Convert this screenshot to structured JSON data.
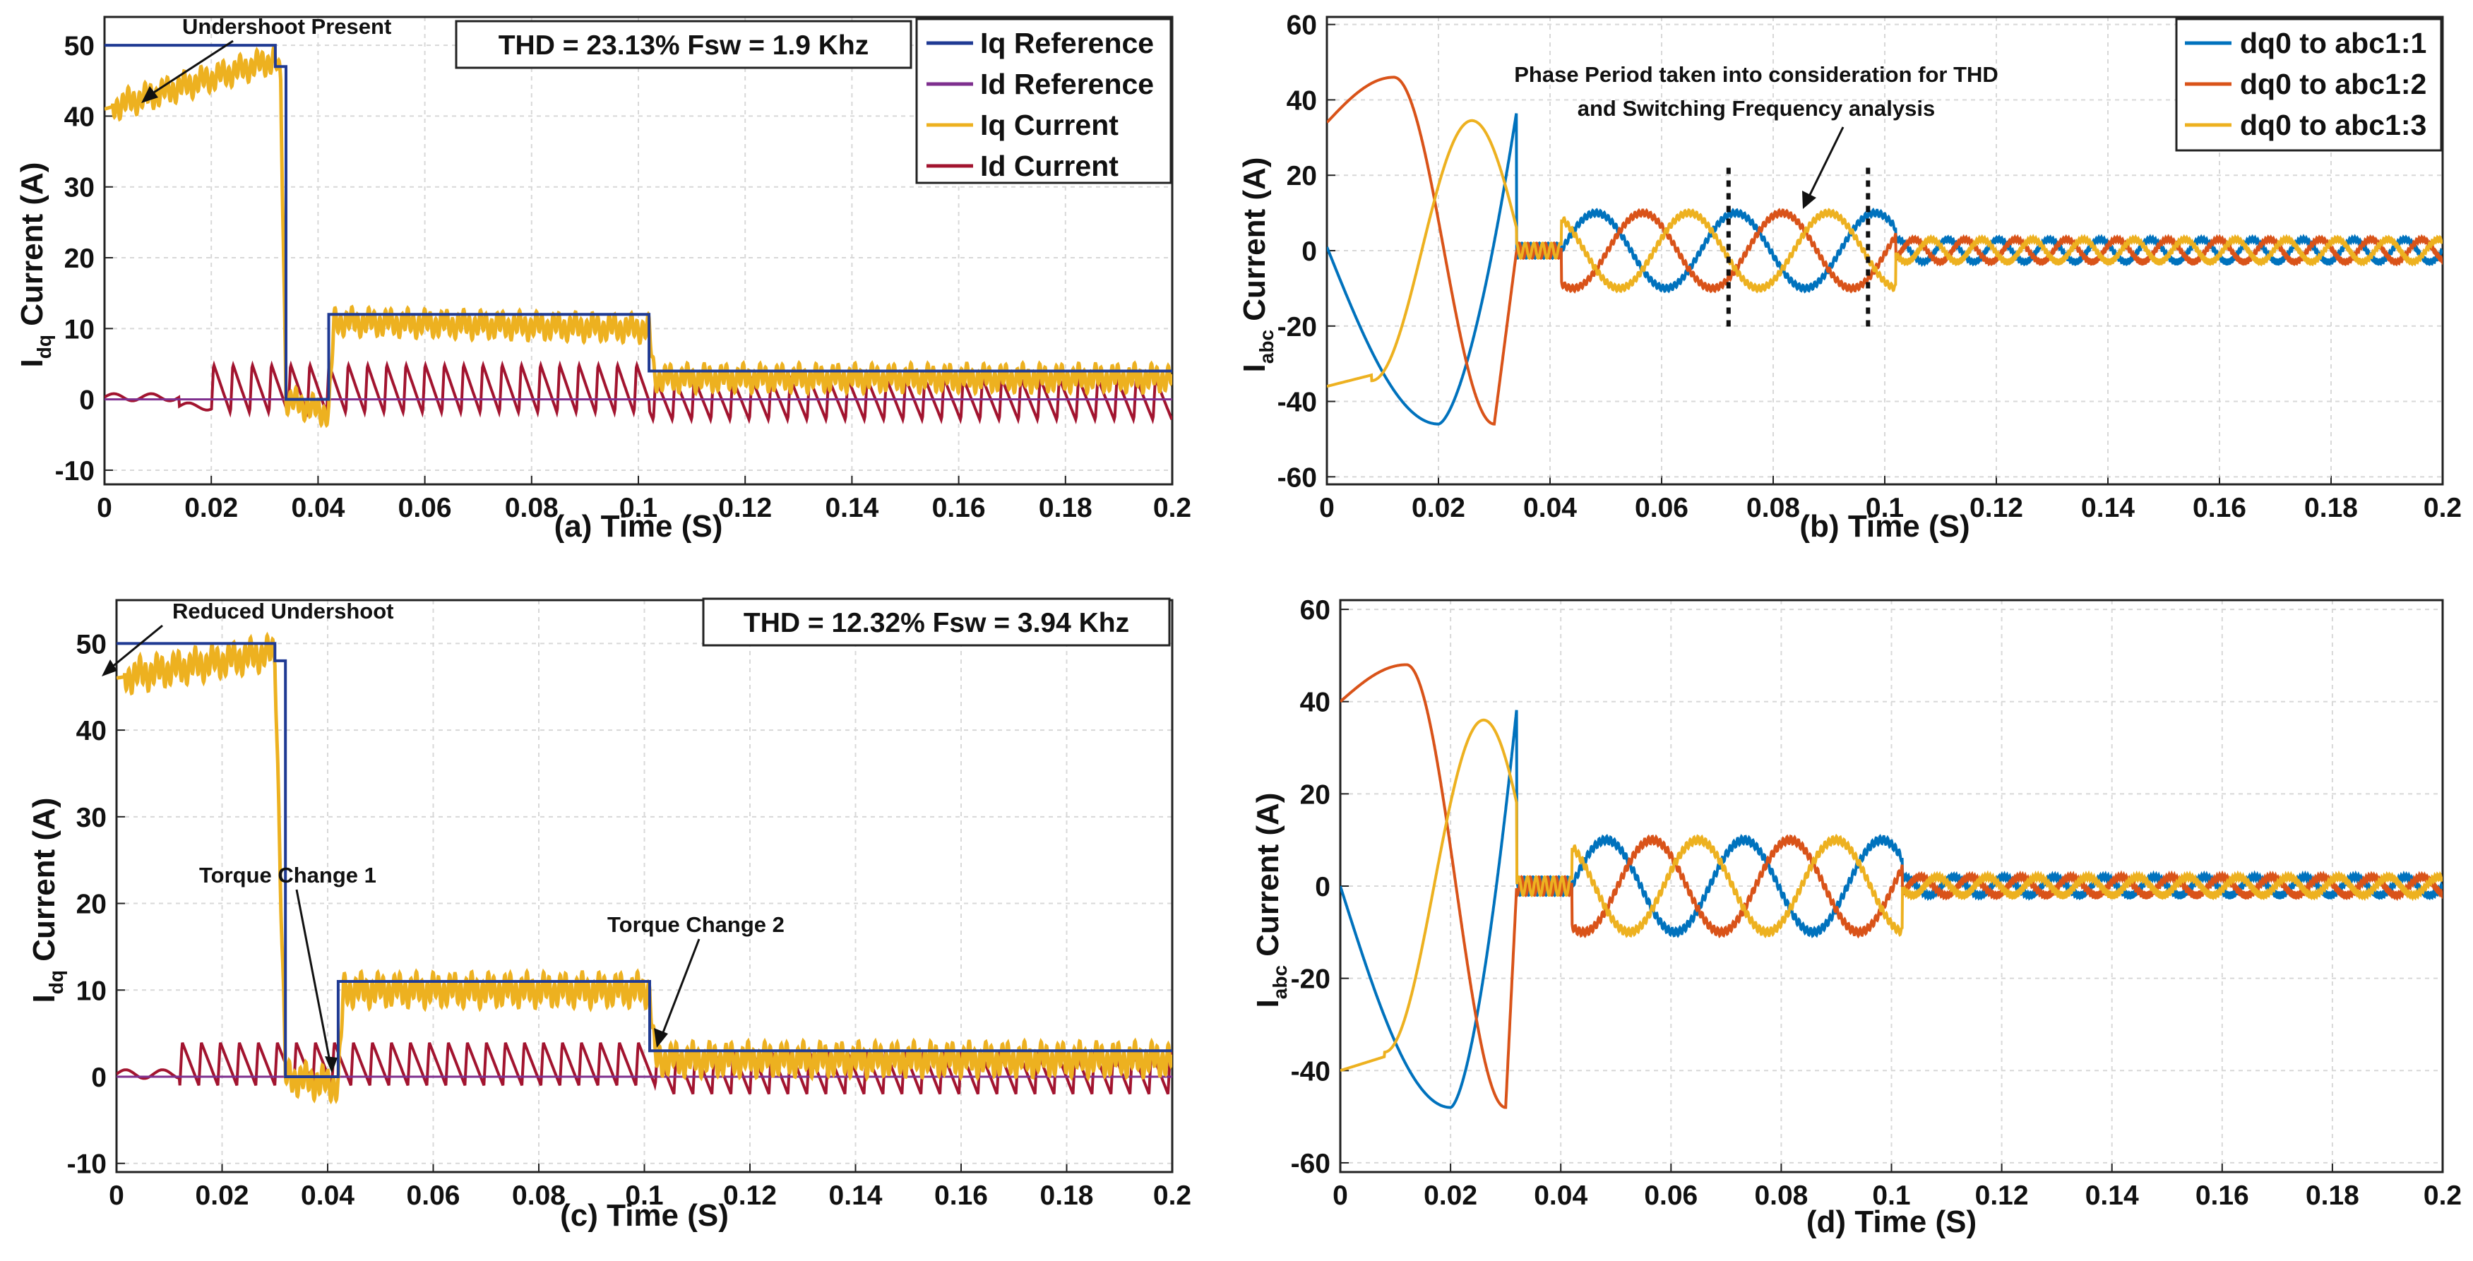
{
  "colors": {
    "ref_blue": "#1f3a93",
    "id_ref_purple": "#7e2f8e",
    "iq_yellow": "#edb120",
    "id_red": "#a2142f",
    "phase1": "#0072bd",
    "phase2": "#d95319",
    "phase3": "#edb120"
  },
  "chart_data": [
    {
      "id": "a",
      "type": "line",
      "caption": "(a)  Time (S)",
      "xlabel": "Time (S)",
      "ylabel": "I_dq Current (A)",
      "ylabel_main": "I",
      "ylabel_sub": "dq",
      "ylabel_rest": " Current (A)",
      "xlim": [
        0,
        0.2
      ],
      "ylim": [
        -12,
        54
      ],
      "xticks": [
        "0",
        "0.02",
        "0.04",
        "0.06",
        "0.08",
        "0.1",
        "0.12",
        "0.14",
        "0.16",
        "0.18",
        "0.2"
      ],
      "yticks": [
        -10,
        0,
        10,
        20,
        30,
        40,
        50
      ],
      "ytick_labels": [
        "-10",
        "0",
        "10",
        "20",
        "30",
        "40",
        "50"
      ],
      "grid": true,
      "legend": [
        "Iq Reference",
        "Id Reference",
        "Iq Current",
        "Id Current"
      ],
      "legend_position": "top-right",
      "thd_text": "THD = 23.13% Fsw = 1.9 Khz",
      "annotations": [
        "Undershoot Present"
      ],
      "steps": {
        "iq_reference": [
          [
            0,
            50
          ],
          [
            0.032,
            50
          ],
          [
            0.032,
            47
          ],
          [
            0.034,
            47
          ],
          [
            0.034,
            0
          ],
          [
            0.042,
            0
          ],
          [
            0.042,
            12
          ],
          [
            0.102,
            12
          ],
          [
            0.102,
            4
          ],
          [
            0.2,
            4
          ]
        ],
        "id_reference": [
          [
            0,
            0
          ],
          [
            0.2,
            0
          ]
        ],
        "iq_current_mean": [
          [
            0,
            41
          ],
          [
            0.032,
            48
          ],
          [
            0.033,
            45
          ],
          [
            0.034,
            0
          ],
          [
            0.042,
            -2
          ],
          [
            0.043,
            11
          ],
          [
            0.102,
            10
          ],
          [
            0.103,
            3
          ],
          [
            0.2,
            3
          ]
        ],
        "id_current_sawtooth": {
          "start": 0.02,
          "period": 0.0036,
          "amp_early": [
            5,
            -2
          ],
          "amp_late": [
            3,
            -3
          ]
        }
      }
    },
    {
      "id": "b",
      "type": "line",
      "caption": "(b)  Time (S)",
      "xlabel": "Time (S)",
      "ylabel": "I_abc Current (A)",
      "ylabel_main": "I",
      "ylabel_sub": "abc",
      "ylabel_rest": " Current (A)",
      "xlim": [
        0,
        0.2
      ],
      "ylim": [
        -62,
        62
      ],
      "xticks": [
        "0",
        "0.02",
        "0.04",
        "0.06",
        "0.08",
        "0.1",
        "0.12",
        "0.14",
        "0.16",
        "0.18",
        "0.2"
      ],
      "yticks": [
        -60,
        -40,
        -20,
        0,
        20,
        40,
        60
      ],
      "ytick_labels": [
        "-60",
        "-40",
        "-20",
        "0",
        "20",
        "40",
        "60"
      ],
      "grid": true,
      "legend": [
        "dq0 to abc1:1",
        "dq0 to abc1:2",
        "dq0 to abc1:3"
      ],
      "legend_position": "top-right",
      "annotations": [
        "Phase Period taken into consideration for THD",
        "and Switching Frequency analysis"
      ],
      "phases": {
        "early_amp": 46,
        "early_freq": 40,
        "mid_amp": 10,
        "mid_freq": 40,
        "late_amp": 3,
        "late_freq": 110
      },
      "marker_lines_x": [
        0.072,
        0.097
      ]
    },
    {
      "id": "c",
      "type": "line",
      "caption": "(c)  Time (S)",
      "xlabel": "Time (S)",
      "ylabel": "I_dq Current (A)",
      "ylabel_main": "I",
      "ylabel_sub": "dq",
      "ylabel_rest": " Current (A)",
      "xlim": [
        0,
        0.2
      ],
      "ylim": [
        -11,
        55
      ],
      "xticks": [
        "0",
        "0.02",
        "0.04",
        "0.06",
        "0.08",
        "0.1",
        "0.12",
        "0.14",
        "0.16",
        "0.18",
        "0.2"
      ],
      "yticks": [
        -10,
        0,
        10,
        20,
        30,
        40,
        50
      ],
      "ytick_labels": [
        "-10",
        "0",
        "10",
        "20",
        "30",
        "40",
        "50"
      ],
      "grid": true,
      "thd_text": "THD = 12.32% Fsw = 3.94 Khz",
      "annotations": [
        "Reduced Undershoot",
        "Torque Change 1",
        "Torque Change 2"
      ],
      "steps": {
        "iq_reference": [
          [
            0,
            50
          ],
          [
            0.03,
            50
          ],
          [
            0.03,
            48
          ],
          [
            0.032,
            48
          ],
          [
            0.032,
            0
          ],
          [
            0.042,
            0
          ],
          [
            0.042,
            11
          ],
          [
            0.101,
            11
          ],
          [
            0.101,
            3
          ],
          [
            0.2,
            3
          ]
        ],
        "id_reference": [
          [
            0,
            0
          ],
          [
            0.2,
            0
          ]
        ],
        "iq_current_mean": [
          [
            0,
            46
          ],
          [
            0.03,
            49
          ],
          [
            0.032,
            0
          ],
          [
            0.042,
            -1
          ],
          [
            0.043,
            10
          ],
          [
            0.101,
            10
          ],
          [
            0.102,
            2
          ],
          [
            0.2,
            2
          ]
        ],
        "id_current_sawtooth": {
          "start": 0.012,
          "period": 0.0036,
          "amp_early": [
            4,
            -1
          ],
          "amp_late": [
            3,
            -2
          ]
        }
      }
    },
    {
      "id": "d",
      "type": "line",
      "caption": "(d)  Time (S)",
      "xlabel": "Time (S)",
      "ylabel": "I_abc Current (A)",
      "ylabel_main": "I",
      "ylabel_sub": "abc",
      "ylabel_rest": " Current (A)",
      "xlim": [
        0,
        0.2
      ],
      "ylim": [
        -62,
        62
      ],
      "xticks": [
        "0",
        "0.02",
        "0.04",
        "0.06",
        "0.08",
        "0.1",
        "0.12",
        "0.14",
        "0.16",
        "0.18",
        "0.2"
      ],
      "yticks": [
        -60,
        -40,
        -20,
        0,
        20,
        40,
        60
      ],
      "ytick_labels": [
        "-60",
        "-40",
        "-20",
        "0",
        "20",
        "40",
        "60"
      ],
      "grid": true,
      "phases": {
        "early_amp": 48,
        "early_freq": 40,
        "mid_amp": 10,
        "mid_freq": 40,
        "late_amp": 2,
        "late_freq": 110
      }
    }
  ]
}
